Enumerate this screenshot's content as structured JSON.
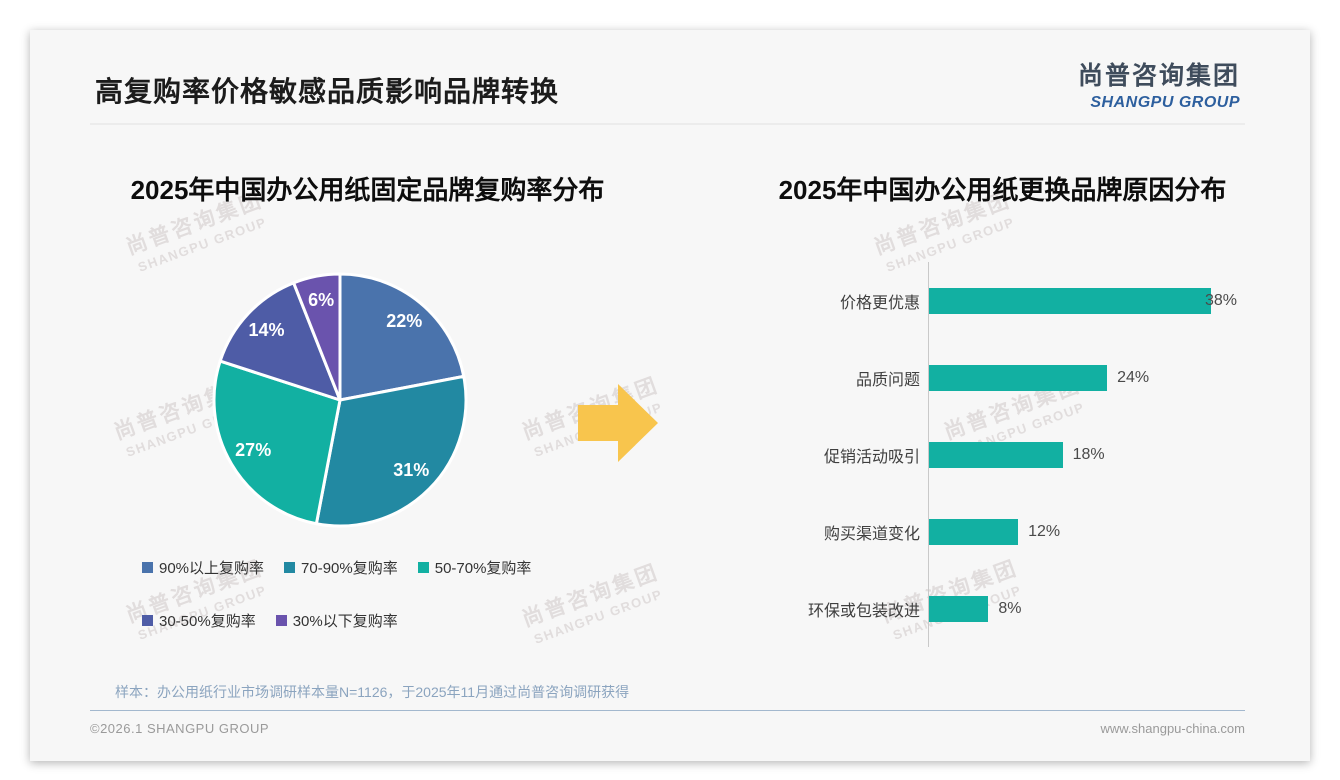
{
  "header": {
    "title": "高复购率价格敏感品质影响品牌转换",
    "logo": {
      "cn": "尚普咨询集团",
      "en": "SHANGPU GROUP"
    }
  },
  "watermark": {
    "cn": "尚普咨询集团",
    "en": "SHANGPU GROUP"
  },
  "arrow": {
    "color": "#F8C54D",
    "direction": "right"
  },
  "chart_data": [
    {
      "type": "pie",
      "title": "2025年中国办公用纸固定品牌复购率分布",
      "categories": [
        "90%以上复购率",
        "70-90%复购率",
        "50-70%复购率",
        "30-50%复购率",
        "30%以下复购率"
      ],
      "values": [
        22,
        31,
        27,
        14,
        6
      ],
      "labels": [
        "22%",
        "31%",
        "27%",
        "14%",
        "6%"
      ],
      "colors": [
        "#4A73AC",
        "#2289A2",
        "#12B0A2",
        "#4E5CA6",
        "#6A53AD"
      ],
      "start_angle_deg": 0,
      "direction": "clockwise",
      "legend_position": "bottom",
      "slice_border_color": "#ffffff"
    },
    {
      "type": "bar",
      "orientation": "horizontal",
      "title": "2025年中国办公用纸更换品牌原因分布",
      "categories": [
        "价格更优惠",
        "品质问题",
        "促销活动吸引",
        "购买渠道变化",
        "环保或包装改进"
      ],
      "values": [
        38,
        24,
        18,
        12,
        8
      ],
      "labels": [
        "38%",
        "24%",
        "18%",
        "12%",
        "8%"
      ],
      "bar_color": "#12B0A2",
      "xlim": [
        0,
        42
      ],
      "grid": false,
      "value_label_position": "outside-end"
    }
  ],
  "footnote": "样本：办公用纸行业市场调研样本量N=1126，于2025年11月通过尚普咨询调研获得",
  "footer": {
    "left": "©2026.1 SHANGPU GROUP",
    "right": "www.shangpu-china.com"
  }
}
